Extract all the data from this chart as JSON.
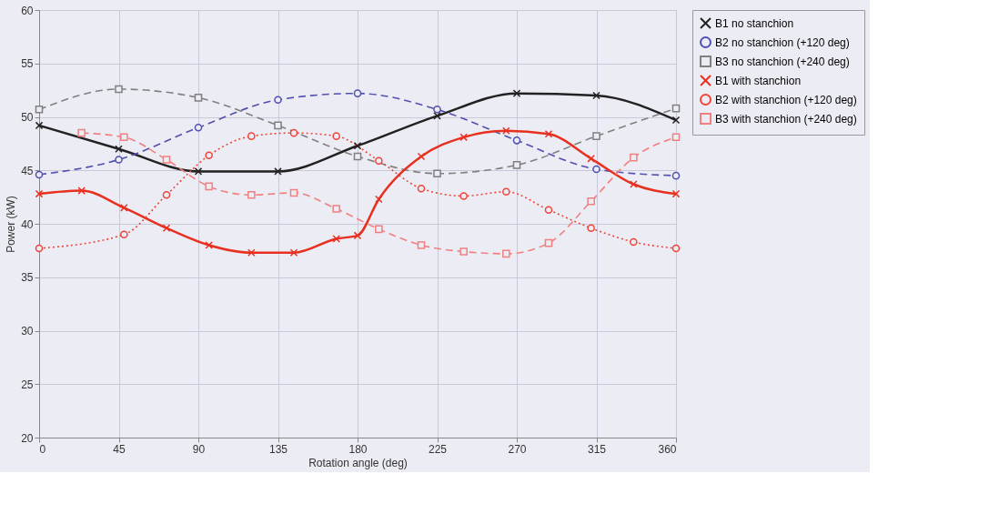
{
  "chart_data": {
    "type": "line",
    "xlabel": "Rotation angle (deg)",
    "ylabel": "Power (kW)",
    "xlim": [
      0,
      360
    ],
    "xticks": [
      0,
      45,
      90,
      135,
      180,
      225,
      270,
      315,
      360
    ],
    "ylim": [
      20,
      60
    ],
    "yticks": [
      20,
      25,
      30,
      35,
      40,
      45,
      50,
      55,
      60
    ],
    "grid": true,
    "legend": "right",
    "series": [
      {
        "name": "B1 no stanchion",
        "color": "#222222",
        "marker": "cross",
        "line_style": "solid",
        "x": [
          0,
          45,
          90,
          135,
          180,
          225,
          270,
          315,
          360
        ],
        "values": [
          49.2,
          47.0,
          44.9,
          44.9,
          47.3,
          50.1,
          52.2,
          52.0,
          49.7
        ]
      },
      {
        "name": "B2 no stanchion (+120 deg)",
        "color": "#5050b0",
        "marker": "circle",
        "line_style": "dashed",
        "x": [
          0,
          45,
          90,
          135,
          180,
          225,
          270,
          315,
          360
        ],
        "values": [
          44.6,
          46.0,
          49.0,
          51.6,
          52.2,
          50.7,
          47.8,
          45.1,
          44.5
        ]
      },
      {
        "name": "B3 no stanchion (+240 deg)",
        "color": "#808080",
        "marker": "square",
        "line_style": "dashed",
        "x": [
          0,
          45,
          90,
          135,
          180,
          225,
          270,
          315,
          360
        ],
        "values": [
          50.7,
          52.6,
          51.8,
          49.2,
          46.3,
          44.7,
          45.5,
          48.2,
          50.8
        ]
      },
      {
        "name": "B1 with stanchion",
        "color": "#e83020",
        "marker": "cross",
        "line_style": "solid",
        "x": [
          0,
          24,
          48,
          72,
          96,
          120,
          144,
          168,
          180,
          192,
          216,
          240,
          264,
          288,
          312,
          336,
          360
        ],
        "values": [
          42.8,
          43.1,
          41.5,
          39.6,
          38.0,
          37.3,
          37.3,
          38.6,
          38.9,
          42.3,
          46.3,
          48.1,
          48.7,
          48.4,
          46.1,
          43.7,
          42.8
        ]
      },
      {
        "name": "B2 with stanchion (+120 deg)",
        "color": "#f04438",
        "marker": "circle",
        "line_style": "dotted",
        "x": [
          0,
          48,
          72,
          96,
          120,
          144,
          168,
          192,
          216,
          240,
          264,
          288,
          312,
          336,
          360
        ],
        "values": [
          37.7,
          39.0,
          42.7,
          46.4,
          48.2,
          48.5,
          48.2,
          45.9,
          43.3,
          42.6,
          43.0,
          41.3,
          39.6,
          38.3,
          37.7
        ]
      },
      {
        "name": "B3 with stanchion (+240 deg)",
        "color": "#f08080",
        "marker": "square",
        "line_style": "dashed",
        "x": [
          24,
          48,
          72,
          96,
          120,
          144,
          168,
          192,
          216,
          240,
          264,
          288,
          312,
          336,
          360
        ],
        "values": [
          48.5,
          48.1,
          46.0,
          43.5,
          42.7,
          42.9,
          41.4,
          39.5,
          38.0,
          37.4,
          37.2,
          38.2,
          42.1,
          46.2,
          48.1
        ]
      }
    ]
  }
}
